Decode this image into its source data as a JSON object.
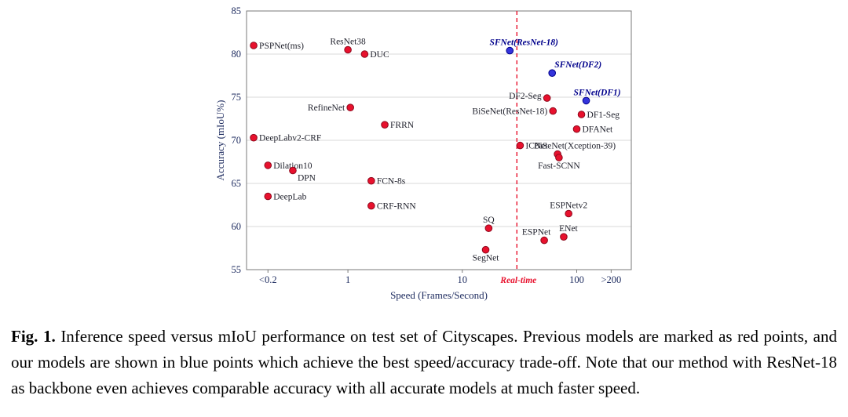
{
  "figure": {
    "caption_label": "Fig. 1.",
    "caption_text": "Inference speed versus mIoU performance on test set of Cityscapes. Previous models are marked as red points, and our models are shown in blue points which achieve the best speed/accuracy trade-off. Note that our method with ResNet-18 as backbone even achieves comparable accuracy with all accurate models at much faster speed."
  },
  "chart_data": {
    "type": "scatter",
    "title": "",
    "xlabel": "Speed (Frames/Second)",
    "ylabel": "Accuracy (mIoU%)",
    "x_scale": "log",
    "xlim": [
      0.13,
      300
    ],
    "ylim": [
      55,
      85
    ],
    "grid": "horizontal",
    "y_ticks": [
      55,
      60,
      65,
      70,
      75,
      80,
      85
    ],
    "x_ticks": [
      {
        "value": 0.2,
        "label": "<0.2"
      },
      {
        "value": 1,
        "label": "1"
      },
      {
        "value": 10,
        "label": "10"
      },
      {
        "value": 100,
        "label": "100"
      },
      {
        "value": 200,
        "label": ">200"
      }
    ],
    "realtime_line": {
      "x": 30,
      "label": "Real-time",
      "color": "#e8112d",
      "style": "dashed"
    },
    "series": [
      {
        "name": "Previous models",
        "color": "#e8112d",
        "edge": "#8f0a1e",
        "points": [
          {
            "label": "PSPNet(ms)",
            "x": 0.15,
            "y": 81.0,
            "label_pos": "right"
          },
          {
            "label": "ResNet38",
            "x": 1.0,
            "y": 80.5,
            "label_pos": "above"
          },
          {
            "label": "DUC",
            "x": 1.4,
            "y": 80.0,
            "label_pos": "right"
          },
          {
            "label": "RefineNet",
            "x": 1.05,
            "y": 73.8,
            "label_pos": "left"
          },
          {
            "label": "FRRN",
            "x": 2.1,
            "y": 71.8,
            "label_pos": "right"
          },
          {
            "label": "DeepLabv2-CRF",
            "x": 0.15,
            "y": 70.3,
            "label_pos": "right"
          },
          {
            "label": "Dilation10",
            "x": 0.2,
            "y": 67.1,
            "label_pos": "right"
          },
          {
            "label": "DPN",
            "x": 0.33,
            "y": 66.5,
            "label_pos": "below-right"
          },
          {
            "label": "FCN-8s",
            "x": 1.6,
            "y": 65.3,
            "label_pos": "right"
          },
          {
            "label": "DeepLab",
            "x": 0.2,
            "y": 63.5,
            "label_pos": "right"
          },
          {
            "label": "CRF-RNN",
            "x": 1.6,
            "y": 62.4,
            "label_pos": "right"
          },
          {
            "label": "SQ",
            "x": 17,
            "y": 59.8,
            "label_pos": "above"
          },
          {
            "label": "SegNet",
            "x": 16,
            "y": 57.3,
            "label_pos": "below"
          },
          {
            "label": "ICNet",
            "x": 32,
            "y": 69.4,
            "label_pos": "right"
          },
          {
            "label": "BiSeNet(ResNet-18)",
            "x": 62,
            "y": 73.4,
            "label_pos": "left"
          },
          {
            "label": "DF2-Seg",
            "x": 55,
            "y": 74.9,
            "label_pos": "left",
            "label_dy": -3
          },
          {
            "label": "DF1-Seg",
            "x": 110,
            "y": 73.0,
            "label_pos": "right"
          },
          {
            "label": "DFANet",
            "x": 100,
            "y": 71.3,
            "label_pos": "right"
          },
          {
            "label": "BiSeNet(Xception-39)",
            "x": 68,
            "y": 68.4,
            "label_pos": "above",
            "label_dx": 22
          },
          {
            "label": "Fast-SCNN",
            "x": 70,
            "y": 68.0,
            "label_pos": "below"
          },
          {
            "label": "ESPNetv2",
            "x": 85,
            "y": 61.5,
            "label_pos": "above"
          },
          {
            "label": "ESPNet",
            "x": 52,
            "y": 58.4,
            "label_pos": "above",
            "label_dx": -10
          },
          {
            "label": "ENet",
            "x": 77,
            "y": 58.8,
            "label_pos": "above",
            "label_dx": 6
          }
        ]
      },
      {
        "name": "SFNet (ours)",
        "color": "#3434dc",
        "edge": "#00008b",
        "points": [
          {
            "label": "SFNet(ResNet-18)",
            "x": 26,
            "y": 80.4,
            "label_pos": "above",
            "label_dx": 18
          },
          {
            "label": "SFNet(DF2)",
            "x": 61,
            "y": 77.8,
            "label_pos": "above-right",
            "label_dx": -2
          },
          {
            "label": "SFNet(DF1)",
            "x": 121,
            "y": 74.6,
            "label_pos": "above",
            "label_dx": 14
          }
        ]
      }
    ]
  }
}
